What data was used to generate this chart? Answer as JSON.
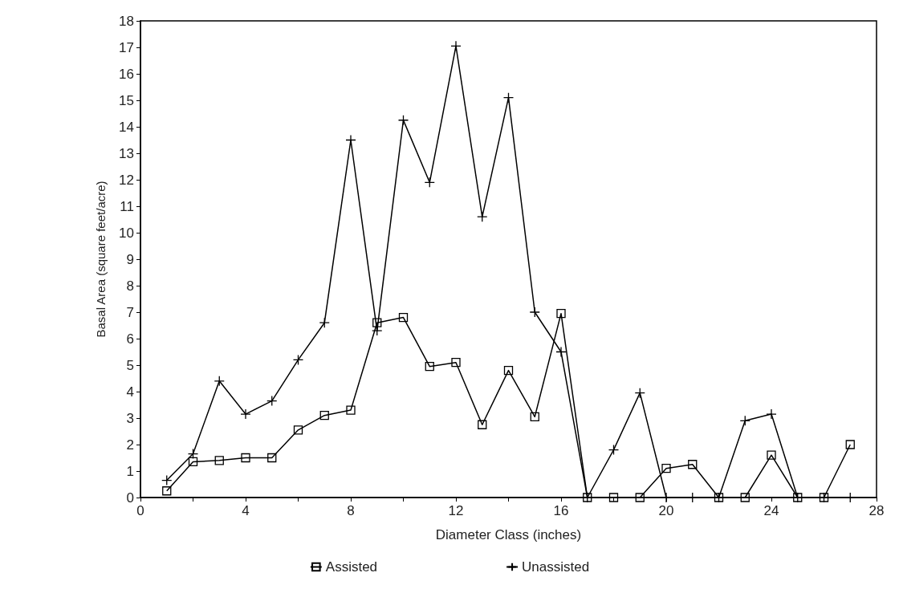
{
  "chart_data": {
    "type": "line",
    "xlabel": "Diameter Class (inches)",
    "ylabel": "Basal Area (square feet/acre)",
    "x": [
      1,
      2,
      3,
      4,
      5,
      6,
      7,
      8,
      9,
      10,
      11,
      12,
      13,
      14,
      15,
      16,
      17,
      18,
      19,
      20,
      21,
      22,
      23,
      24,
      25,
      26,
      27
    ],
    "series": [
      {
        "name": "Assisted",
        "color": "#000000",
        "marker": "square",
        "values": [
          0.25,
          1.35,
          1.4,
          1.5,
          1.5,
          2.55,
          3.1,
          3.3,
          6.6,
          6.8,
          4.95,
          5.1,
          2.75,
          4.8,
          3.05,
          6.95,
          0,
          0,
          0,
          1.1,
          1.25,
          0,
          0,
          1.6,
          0,
          0,
          2.0
        ]
      },
      {
        "name": "Unassisted",
        "color": "#000000",
        "marker": "cross",
        "values": [
          0.65,
          1.65,
          4.4,
          3.15,
          3.65,
          5.2,
          6.6,
          13.5,
          6.3,
          14.25,
          11.9,
          17.05,
          10.6,
          15.1,
          7.0,
          5.5,
          0,
          1.8,
          3.95,
          0,
          0,
          0,
          2.9,
          3.15,
          0,
          0,
          0
        ]
      }
    ],
    "xlim": [
      0,
      28
    ],
    "xticks": [
      0,
      {
        "value": 2,
        "label": null
      },
      4,
      {
        "value": 6,
        "label": null
      },
      8,
      {
        "value": 10,
        "label": null
      },
      12,
      {
        "value": 14,
        "label": null
      },
      16,
      {
        "value": 18,
        "label": null
      },
      20,
      {
        "value": 22,
        "label": null
      },
      24,
      {
        "value": 26,
        "label": null
      },
      28
    ],
    "ylim": [
      0,
      18
    ],
    "yticks": [
      0,
      1,
      2,
      3,
      4,
      5,
      6,
      7,
      8,
      9,
      10,
      11,
      12,
      13,
      14,
      15,
      16,
      17,
      18
    ],
    "grid": false,
    "legend": "bottom",
    "line_style": "solid"
  }
}
